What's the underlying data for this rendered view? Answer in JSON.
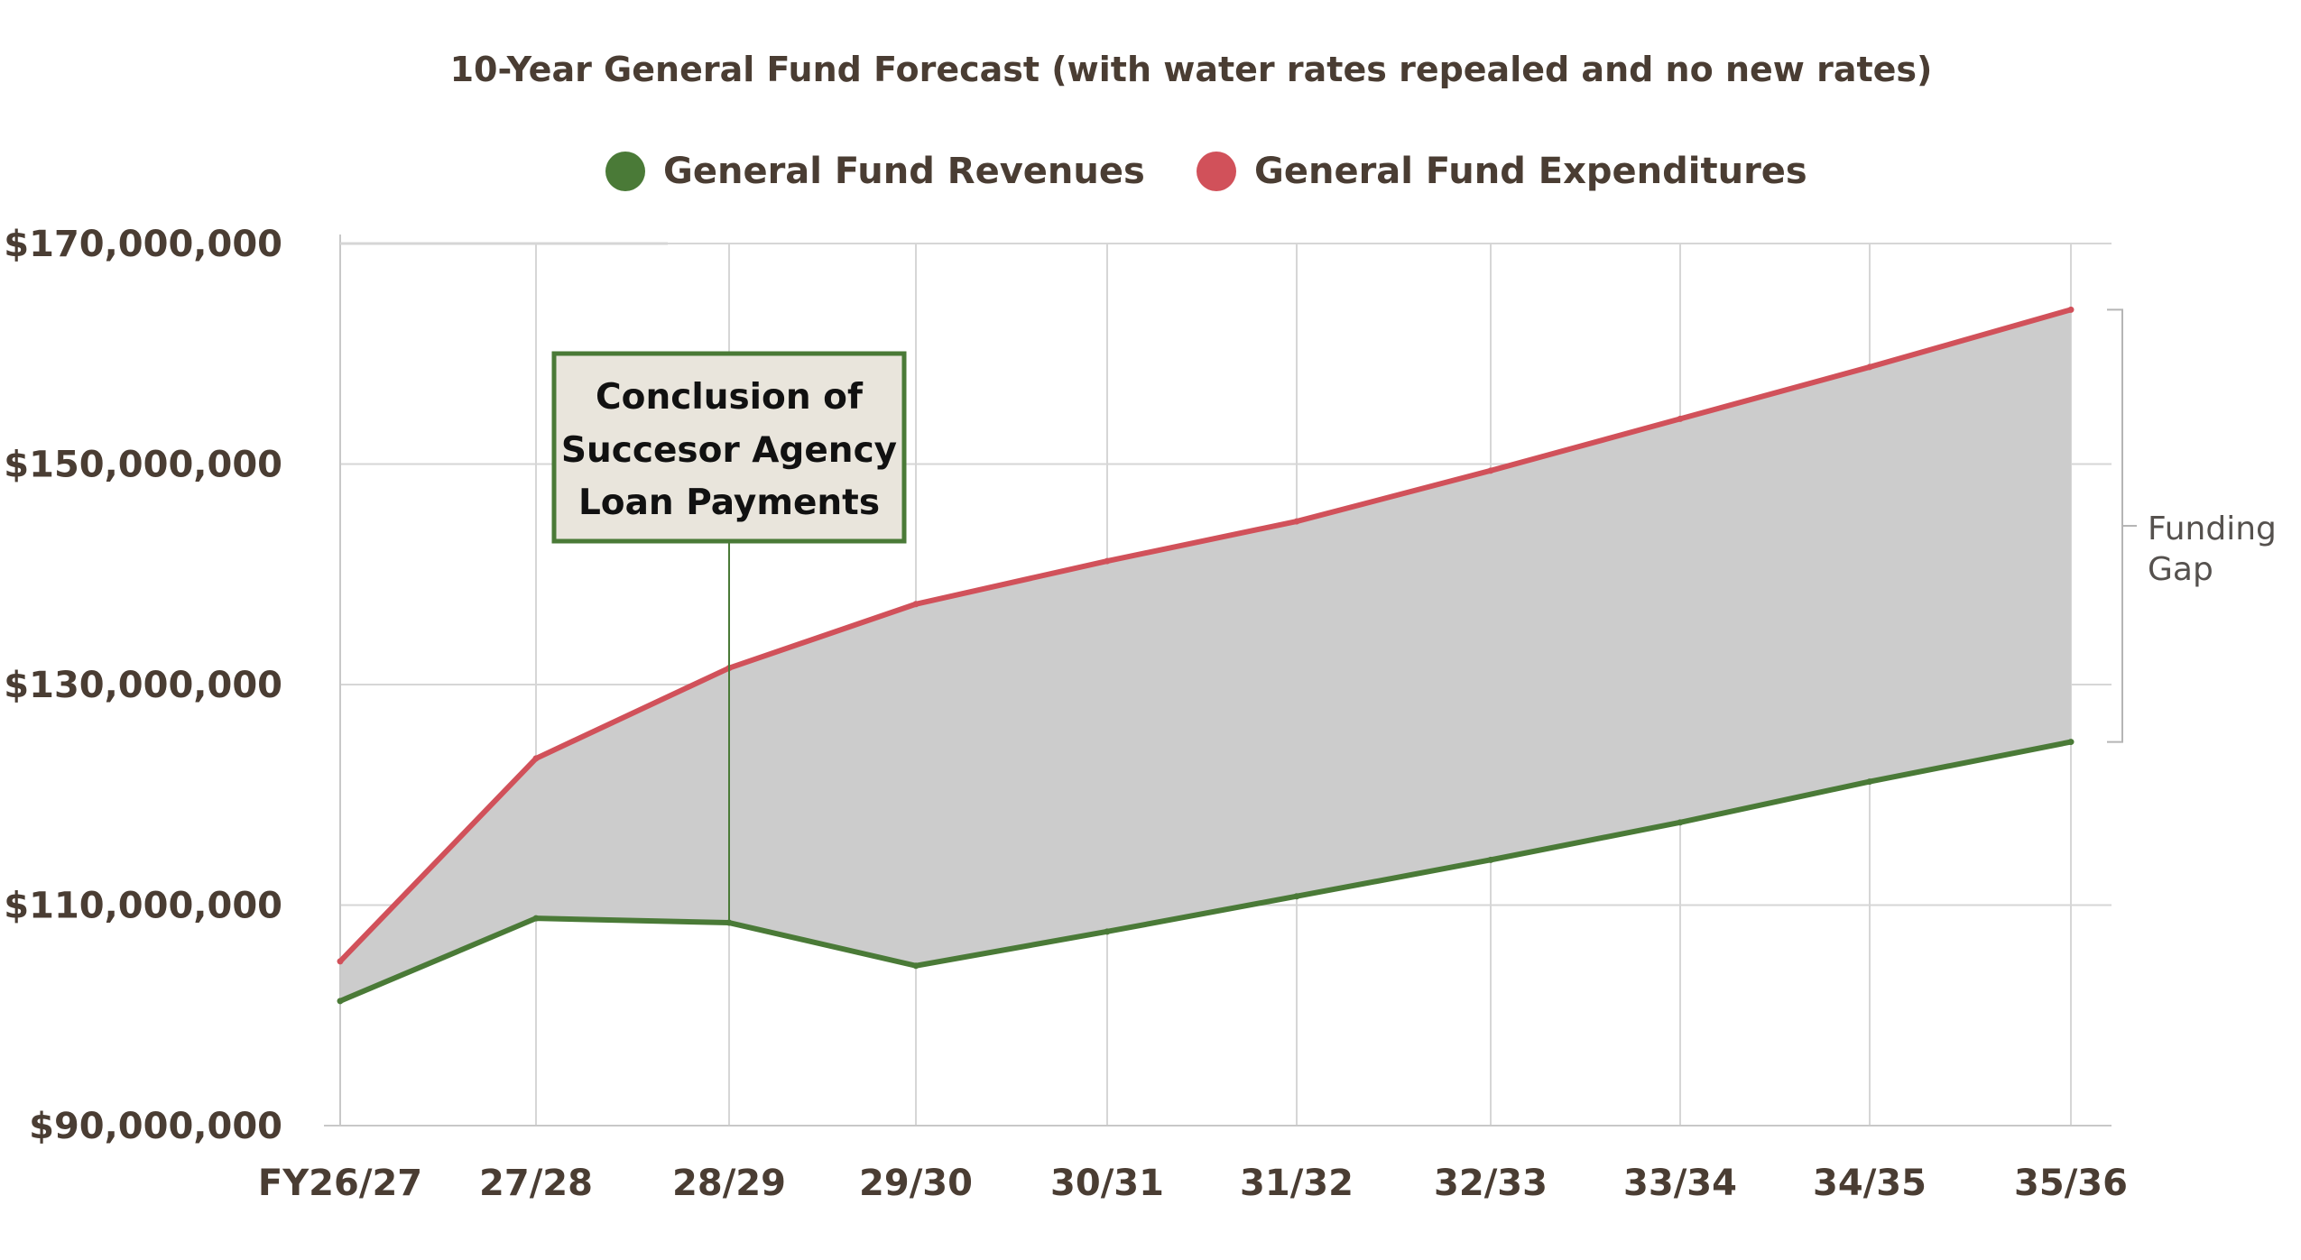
{
  "chart_data": {
    "type": "area",
    "title": "10-Year General Fund Forecast (with water rates repealed and no new rates)",
    "xlabel": "",
    "ylabel": "",
    "categories": [
      "FY26/27",
      "27/28",
      "28/29",
      "29/30",
      "30/31",
      "31/32",
      "32/33",
      "33/34",
      "34/35",
      "35/36"
    ],
    "y_ticks": [
      {
        "value": 90000000,
        "label": "$90,000,000"
      },
      {
        "value": 110000000,
        "label": "$110,000,000"
      },
      {
        "value": 130000000,
        "label": "$130,000,000"
      },
      {
        "value": 150000000,
        "label": "$150,000,000"
      },
      {
        "value": 170000000,
        "label": "$170,000,000"
      }
    ],
    "ylim": [
      90000000,
      170000000
    ],
    "grid": true,
    "legend_position": "top-center",
    "series": [
      {
        "name": "General Fund Revenues",
        "color": "#4a7a37",
        "values": [
          101300000,
          108800000,
          108400000,
          104500000,
          107600000,
          110800000,
          114100000,
          117500000,
          121200000,
          124800000
        ]
      },
      {
        "name": "General Fund Expenditures",
        "color": "#d1515a",
        "values": [
          104900000,
          123300000,
          131500000,
          137300000,
          141200000,
          144800000,
          149400000,
          154100000,
          158800000,
          164000000
        ]
      }
    ],
    "gap_fill_color": "#cccccc",
    "annotations": [
      {
        "lines": [
          "Conclusion of",
          "Succesor Agency",
          "Loan Payments"
        ],
        "category": "28/29",
        "border_color": "#4a7a37",
        "background": "#e9e5dc"
      }
    ],
    "bracket_label": [
      "Funding",
      "Gap"
    ]
  }
}
